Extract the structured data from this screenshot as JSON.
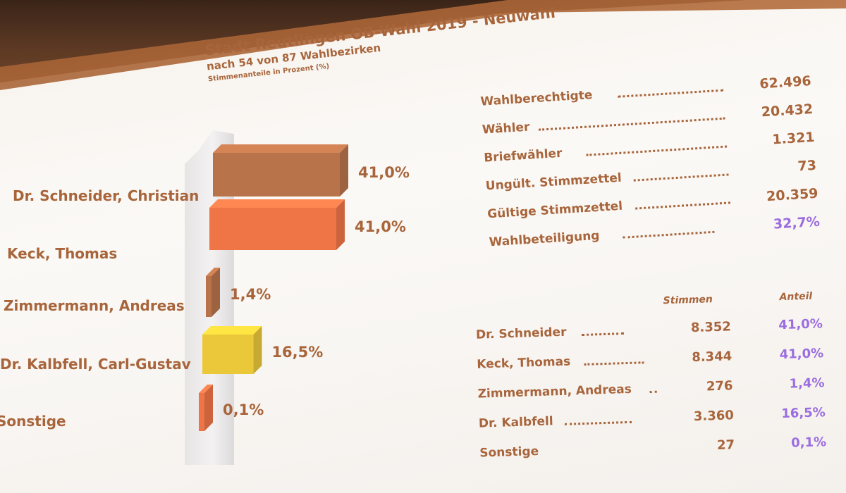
{
  "header": {
    "title": "Stadt Reutlingen OB-Wahl 2019 - Neuwahl",
    "subtitle": "nach 54 von 87 Wahlbezirken",
    "note": "Stimmenanteile in Prozent (%)"
  },
  "chart_data": {
    "type": "bar",
    "orientation": "horizontal",
    "categories": [
      "Dr. Schneider, Christian",
      "Keck, Thomas",
      "Zimmermann, Andreas",
      "Dr. Kalbfell, Carl-Gustav",
      "Sonstige"
    ],
    "values": [
      41.0,
      41.0,
      1.4,
      16.5,
      0.1
    ],
    "value_labels": [
      "41,0%",
      "41,0%",
      "1,4%",
      "16,5%",
      "0,1%"
    ],
    "colors": [
      "#b9734a",
      "#f07546",
      "#b9734a",
      "#eac83a",
      "#f07546"
    ],
    "xlim": [
      0,
      41
    ]
  },
  "stats": [
    {
      "label": "Wahlberechtigte",
      "value": "62.496"
    },
    {
      "label": "Wähler",
      "value": "20.432"
    },
    {
      "label": "Briefwähler",
      "value": "1.321"
    },
    {
      "label": "Ungült. Stimmzettel",
      "value": "73"
    },
    {
      "label": "Gültige Stimmzettel",
      "value": "20.359"
    },
    {
      "label": "Wahlbeteiligung",
      "value": "32,7%"
    }
  ],
  "results": {
    "headers": {
      "votes": "Stimmen",
      "share": "Anteil"
    },
    "rows": [
      {
        "name": "Dr. Schneider",
        "votes": "8.352",
        "share": "41,0%"
      },
      {
        "name": "Keck, Thomas",
        "votes": "8.344",
        "share": "41,0%"
      },
      {
        "name": "Zimmermann, Andreas",
        "votes": "276",
        "share": "1,4%"
      },
      {
        "name": "Dr. Kalbfell",
        "votes": "3.360",
        "share": "16,5%"
      },
      {
        "name": "Sonstige",
        "votes": "27",
        "share": "0,1%"
      }
    ]
  },
  "colors": {
    "text": "#a8653b",
    "accent": "#9b6de0"
  }
}
